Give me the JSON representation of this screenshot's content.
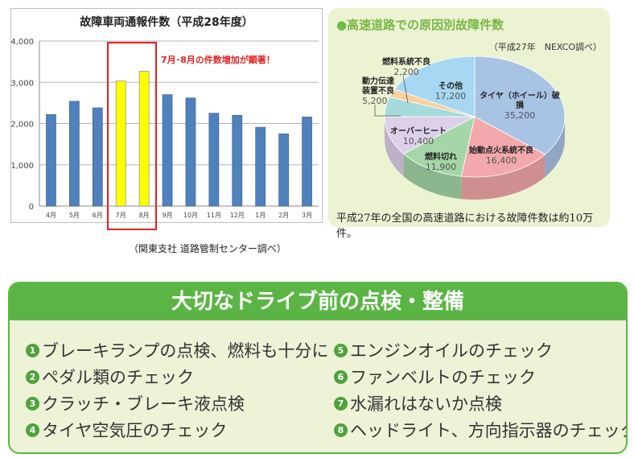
{
  "chart_data": [
    {
      "type": "bar",
      "title": "故障車両通報件数（平成28年度）",
      "categories": [
        "4月",
        "5月",
        "6月",
        "7月",
        "8月",
        "9月",
        "10月",
        "11月",
        "12月",
        "1月",
        "2月",
        "3月"
      ],
      "values": [
        2220,
        2540,
        2380,
        3030,
        3270,
        2700,
        2620,
        2250,
        2200,
        1910,
        1750,
        2160
      ],
      "highlight": [
        "7月",
        "8月"
      ],
      "colors": {
        "normal": "#4f81bd",
        "highlight": "#ffff00"
      },
      "ylim": [
        0,
        4000
      ],
      "yticks": [
        "0",
        "1,000",
        "2,000",
        "3,000",
        "4,000"
      ],
      "grid": true,
      "annotation": "7月･8月の件数増加が顕著！",
      "source": "（関東支社 道路管制センター調べ）"
    },
    {
      "type": "pie",
      "title": "高速道路での原因別故障件数",
      "note": "（平成27年　NEXCO調べ）",
      "slices": [
        {
          "label": "タイヤ（ホイール）破損",
          "value": 35200,
          "value_text": "35,200",
          "color": "#a9c3e5"
        },
        {
          "label": "始動点火系統不良",
          "value": 16400,
          "value_text": "16,400",
          "color": "#f3a8ab"
        },
        {
          "label": "燃料切れ",
          "value": 11900,
          "value_text": "11,900",
          "color": "#a5d6a7"
        },
        {
          "label": "オーバーヒート",
          "value": 10400,
          "value_text": "10,400",
          "color": "#ddd0e9"
        },
        {
          "label": "動力伝達装置不良",
          "value": 5200,
          "value_text": "5,200",
          "color": "#a7dadb"
        },
        {
          "label": "燃料系統不良",
          "value": 2200,
          "value_text": "2,200",
          "color": "#fad09c"
        },
        {
          "label": "その他",
          "value": 17200,
          "value_text": "17,200",
          "color": "#a7d8f3"
        }
      ],
      "footer": "平成27年の全国の高速道路における故障件数は約10万件。"
    }
  ],
  "checklist": {
    "title": "大切なドライブ前の点検・整備",
    "items": [
      {
        "num": "1",
        "text": "ブレーキランプの点検、燃料も十分に"
      },
      {
        "num": "2",
        "text": "ペダル類のチェック"
      },
      {
        "num": "3",
        "text": "クラッチ・ブレーキ液点検"
      },
      {
        "num": "4",
        "text": "タイヤ空気圧のチェック"
      },
      {
        "num": "5",
        "text": "エンジンオイルのチェック"
      },
      {
        "num": "6",
        "text": "ファンベルトのチェック"
      },
      {
        "num": "7",
        "text": "水漏れはないか点検"
      },
      {
        "num": "8",
        "text": "ヘッドライト、方向指示器のチェック"
      }
    ]
  }
}
